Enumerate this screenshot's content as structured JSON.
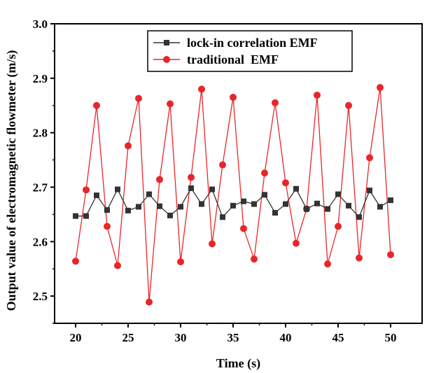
{
  "chart_data": {
    "type": "line",
    "xlabel": "Time (s)",
    "ylabel": "Output value of electromagnetic flowmeter (m/s)",
    "xlim": [
      18,
      53
    ],
    "ylim": [
      2.45,
      3.0
    ],
    "x_ticks": [
      20,
      25,
      30,
      35,
      40,
      45,
      50
    ],
    "y_ticks": [
      2.5,
      2.6,
      2.7,
      2.8,
      2.9,
      3.0
    ],
    "x_tick_labels": [
      "20",
      "25",
      "30",
      "35",
      "40",
      "45",
      "50"
    ],
    "y_tick_labels": [
      "2.5",
      "2.6",
      "2.7",
      "2.8",
      "2.9",
      "3.0"
    ],
    "grid": false,
    "legend_position": "top-center",
    "x": [
      20,
      21,
      22,
      23,
      24,
      25,
      26,
      27,
      28,
      29,
      30,
      31,
      32,
      33,
      34,
      35,
      36,
      37,
      38,
      39,
      40,
      41,
      42,
      43,
      44,
      45,
      46,
      47,
      48,
      49,
      50
    ],
    "series": [
      {
        "name": "lock-in correlation EMF",
        "marker": "square",
        "color": "#333333",
        "values": [
          2.647,
          2.647,
          2.685,
          2.658,
          2.696,
          2.657,
          2.664,
          2.687,
          2.665,
          2.648,
          2.664,
          2.698,
          2.669,
          2.696,
          2.645,
          2.666,
          2.674,
          2.669,
          2.686,
          2.653,
          2.669,
          2.697,
          2.66,
          2.67,
          2.66,
          2.687,
          2.666,
          2.645,
          2.694,
          2.664,
          2.676
        ]
      },
      {
        "name": "traditional  EMF",
        "marker": "circle",
        "color": "#e8262a",
        "values": [
          2.564,
          2.695,
          2.85,
          2.628,
          2.556,
          2.776,
          2.863,
          2.489,
          2.714,
          2.853,
          2.563,
          2.718,
          2.88,
          2.596,
          2.741,
          2.865,
          2.624,
          2.568,
          2.726,
          2.855,
          2.708,
          2.597,
          2.66,
          2.869,
          2.559,
          2.628,
          2.85,
          2.57,
          2.754,
          2.883,
          2.576
        ]
      }
    ]
  }
}
